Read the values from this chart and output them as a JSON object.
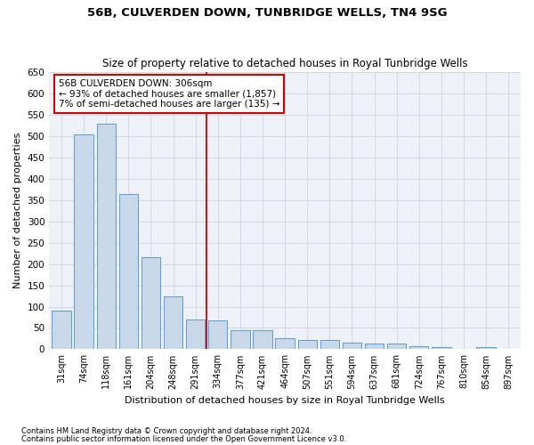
{
  "title1": "56B, CULVERDEN DOWN, TUNBRIDGE WELLS, TN4 9SG",
  "title2": "Size of property relative to detached houses in Royal Tunbridge Wells",
  "xlabel": "Distribution of detached houses by size in Royal Tunbridge Wells",
  "ylabel": "Number of detached properties",
  "footnote1": "Contains HM Land Registry data © Crown copyright and database right 2024.",
  "footnote2": "Contains public sector information licensed under the Open Government Licence v3.0.",
  "annotation_line1": "56B CULVERDEN DOWN: 306sqm",
  "annotation_line2": "← 93% of detached houses are smaller (1,857)",
  "annotation_line3": "7% of semi-detached houses are larger (135) →",
  "bar_color": "#c8d8e8",
  "bar_edge_color": "#5b9bd5",
  "vline_color": "#cc0000",
  "annotation_box_edgecolor": "#cc0000",
  "grid_color": "#d0d8e8",
  "bg_color": "#eef2f8",
  "categories": [
    "31sqm",
    "74sqm",
    "118sqm",
    "161sqm",
    "204sqm",
    "248sqm",
    "291sqm",
    "334sqm",
    "377sqm",
    "421sqm",
    "464sqm",
    "507sqm",
    "551sqm",
    "594sqm",
    "637sqm",
    "681sqm",
    "724sqm",
    "767sqm",
    "810sqm",
    "854sqm",
    "897sqm"
  ],
  "values": [
    90,
    505,
    530,
    365,
    215,
    125,
    70,
    68,
    45,
    45,
    25,
    22,
    22,
    15,
    13,
    13,
    8,
    5,
    1,
    5,
    1
  ],
  "ylim": [
    0,
    650
  ],
  "yticks": [
    0,
    50,
    100,
    150,
    200,
    250,
    300,
    350,
    400,
    450,
    500,
    550,
    600,
    650
  ],
  "vline_x": 6.5,
  "fig_width": 6.0,
  "fig_height": 5.0,
  "dpi": 100
}
